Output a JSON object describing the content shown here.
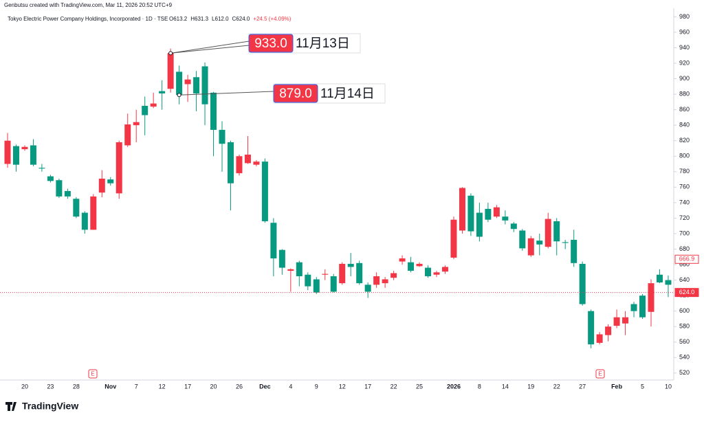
{
  "header": {
    "credit": "Genbutsu created with TradingView.com, Mar 11, 2026 20:52 UTC+9",
    "symbol": "Tokyo Electric Power Company Holdings, Incorporated · 1D · TSE",
    "ohlc": [
      "O613.2",
      "H631.3",
      "L612.0",
      "C624.0",
      "+24.5 (+4.09%)"
    ]
  },
  "brand": "TradingView",
  "events": [
    "E",
    "E"
  ],
  "chart_data": {
    "type": "candlestick",
    "categories": [
      null,
      null,
      "20",
      null,
      null,
      "23",
      null,
      null,
      "28",
      null,
      null,
      null,
      "Nov",
      null,
      null,
      "7",
      null,
      null,
      "12",
      null,
      null,
      "17",
      null,
      null,
      "20",
      null,
      null,
      "26",
      null,
      null,
      "Dec",
      null,
      null,
      "4",
      null,
      null,
      "9",
      null,
      null,
      "12",
      null,
      null,
      "17",
      null,
      null,
      "22",
      null,
      null,
      "25",
      null,
      null,
      null,
      "2026",
      null,
      null,
      "8",
      null,
      null,
      "14",
      null,
      null,
      "19",
      null,
      null,
      "22",
      null,
      null,
      "27",
      null,
      null,
      null,
      "Feb",
      null,
      null,
      "5",
      null,
      null,
      "10"
    ],
    "open": [
      790,
      813,
      809,
      814,
      785,
      774,
      769,
      755,
      745,
      727,
      705,
      753,
      770,
      752,
      814,
      840,
      865,
      864,
      884,
      887,
      909,
      893,
      902,
      916,
      882,
      834,
      818,
      778,
      791,
      789,
      793,
      714,
      679,
      652,
      663,
      647,
      641,
      647,
      645,
      636,
      661,
      662,
      634,
      634,
      636,
      643,
      664,
      663,
      658,
      656,
      647,
      651,
      669,
      704,
      749,
      727,
      732,
      722,
      722,
      713,
      704,
      672,
      691,
      683,
      716,
      689,
      692,
      661,
      600,
      559,
      569,
      581,
      584,
      609,
      620,
      599,
      647,
      640
    ],
    "high": [
      830,
      815,
      814,
      822,
      790,
      776,
      771,
      758,
      747,
      729,
      751,
      782,
      773,
      820,
      855,
      860,
      877,
      882,
      898,
      939,
      917,
      905,
      910,
      921,
      883,
      845,
      820,
      802,
      826,
      795,
      797,
      720,
      680,
      655,
      665,
      650,
      644,
      654,
      648,
      663,
      675,
      665,
      637,
      650,
      644,
      652,
      672,
      670,
      663,
      659,
      652,
      659,
      722,
      760,
      752,
      740,
      740,
      737,
      730,
      715,
      706,
      697,
      700,
      727,
      720,
      692,
      705,
      664,
      602,
      573,
      583,
      602,
      600,
      612,
      622,
      641,
      654,
      646
    ],
    "low": [
      785,
      780,
      807,
      787,
      780,
      766,
      746,
      745,
      720,
      700,
      705,
      747,
      762,
      745,
      812,
      818,
      827,
      862,
      860,
      882,
      867,
      870,
      858,
      840,
      800,
      780,
      730,
      775,
      790,
      787,
      714,
      645,
      647,
      625,
      632,
      627,
      622,
      640,
      624,
      634,
      645,
      634,
      617,
      630,
      630,
      640,
      660,
      650,
      657,
      643,
      644,
      648,
      667,
      700,
      697,
      690,
      715,
      720,
      712,
      702,
      678,
      670,
      672,
      681,
      672,
      680,
      657,
      607,
      552,
      557,
      561,
      578,
      569,
      592,
      590,
      580,
      636,
      618
    ],
    "close": [
      820,
      789,
      812,
      789,
      784,
      768,
      748,
      748,
      722,
      705,
      748,
      771,
      765,
      818,
      841,
      844,
      853,
      868,
      881,
      933,
      879,
      899,
      881,
      867,
      834,
      816,
      765,
      800,
      802,
      793,
      716,
      668,
      656,
      654,
      645,
      632,
      624,
      648,
      625,
      661,
      657,
      636,
      625,
      645,
      641,
      649,
      668,
      652,
      661,
      645,
      650,
      657,
      718,
      759,
      703,
      696,
      718,
      734,
      717,
      706,
      681,
      694,
      686,
      719,
      690,
      688,
      662,
      609,
      557,
      570,
      580,
      592,
      592,
      600,
      592,
      636,
      637,
      634
    ],
    "up_color": "#f23645",
    "down_color": "#089981",
    "ylim": [
      511,
      991
    ],
    "yticks": [
      520,
      540,
      560,
      580,
      600,
      620,
      640,
      660,
      680,
      700,
      720,
      740,
      760,
      780,
      800,
      820,
      840,
      860,
      880,
      900,
      920,
      940,
      960,
      980
    ],
    "price_markers": [
      {
        "value": 666.9,
        "label": "666.9",
        "color": "#f23645"
      },
      {
        "value": 624,
        "label": "624.0",
        "color": "#f23645"
      }
    ],
    "annotations": [
      {
        "value": 933,
        "label": "933.0",
        "date": "11月13日"
      },
      {
        "value": 879,
        "label": "879.0",
        "date": "11月14日"
      }
    ]
  }
}
